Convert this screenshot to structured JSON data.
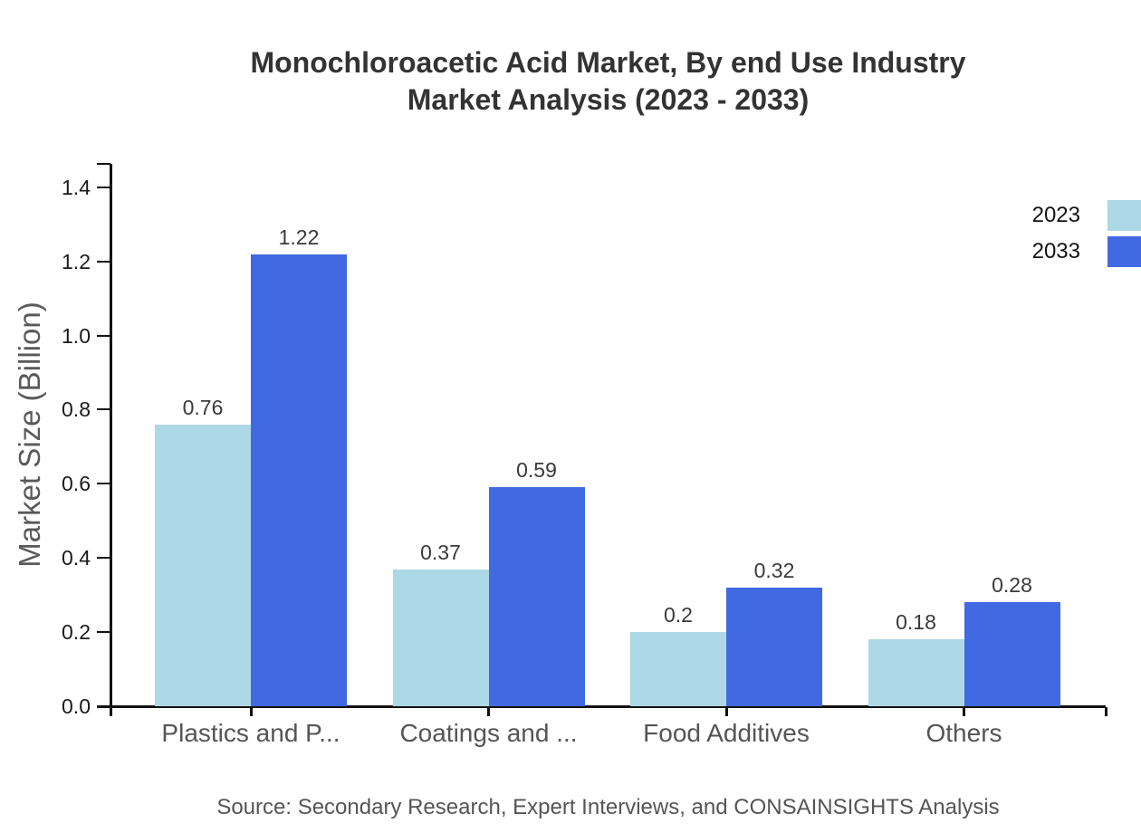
{
  "title": {
    "line1": "Monochloroacetic Acid Market, By end Use Industry",
    "line2": "Market Analysis (2023 - 2033)"
  },
  "y_axis_title": "Market Size (Billion)",
  "source": "Source: Secondary Research, Expert Interviews, and CONSAINSIGHTS Analysis",
  "colors": {
    "series_2023": "#ADD8E6",
    "series_2033": "#4169E1",
    "axis": "#111111",
    "title_text": "#333333",
    "muted_text": "#555555"
  },
  "legend": {
    "position": "top-right",
    "items": [
      {
        "label": "2023",
        "color": "#ADD8E6"
      },
      {
        "label": "2033",
        "color": "#4169E1"
      }
    ]
  },
  "chart_data": {
    "type": "bar",
    "title": "Monochloroacetic Acid Market, By end Use Industry Market Analysis (2023 - 2033)",
    "categories": [
      "Plastics and P...",
      "Coatings and ...",
      "Food Additives",
      "Others"
    ],
    "series": [
      {
        "name": "2023",
        "color": "#ADD8E6",
        "values": [
          0.76,
          0.37,
          0.2,
          0.18
        ]
      },
      {
        "name": "2033",
        "color": "#4169E1",
        "values": [
          1.22,
          0.59,
          0.32,
          0.28
        ]
      }
    ],
    "xlabel": "",
    "ylabel": "Market Size (Billion)",
    "ylim": [
      0,
      1.4625
    ],
    "yticks": [
      0,
      0.2,
      0.4,
      0.6,
      0.8,
      1.0,
      1.2,
      1.4
    ],
    "grid": false,
    "legend_position": "top-right",
    "bar_value_labels": true
  }
}
